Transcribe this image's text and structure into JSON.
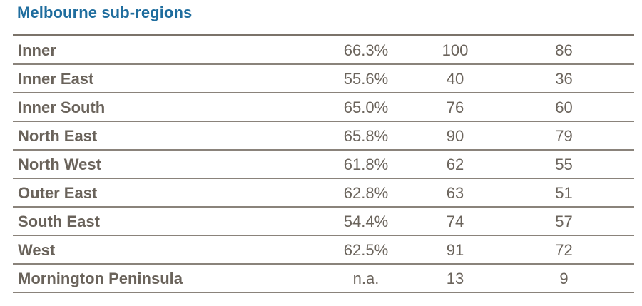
{
  "title": "Melbourne sub-regions",
  "rows": [
    {
      "name": "Inner",
      "pct": "66.3%",
      "a": "100",
      "b": "86"
    },
    {
      "name": "Inner East",
      "pct": "55.6%",
      "a": "40",
      "b": "36"
    },
    {
      "name": "Inner South",
      "pct": "65.0%",
      "a": "76",
      "b": "60"
    },
    {
      "name": "North East",
      "pct": "65.8%",
      "a": "90",
      "b": "79"
    },
    {
      "name": "North West",
      "pct": "61.8%",
      "a": "62",
      "b": "55"
    },
    {
      "name": "Outer East",
      "pct": "62.8%",
      "a": "63",
      "b": "51"
    },
    {
      "name": "South East",
      "pct": "54.4%",
      "a": "74",
      "b": "57"
    },
    {
      "name": "West",
      "pct": "62.5%",
      "a": "91",
      "b": "72"
    },
    {
      "name": "Mornington Peninsula",
      "pct": "n.a.",
      "a": "13",
      "b": "9"
    }
  ]
}
